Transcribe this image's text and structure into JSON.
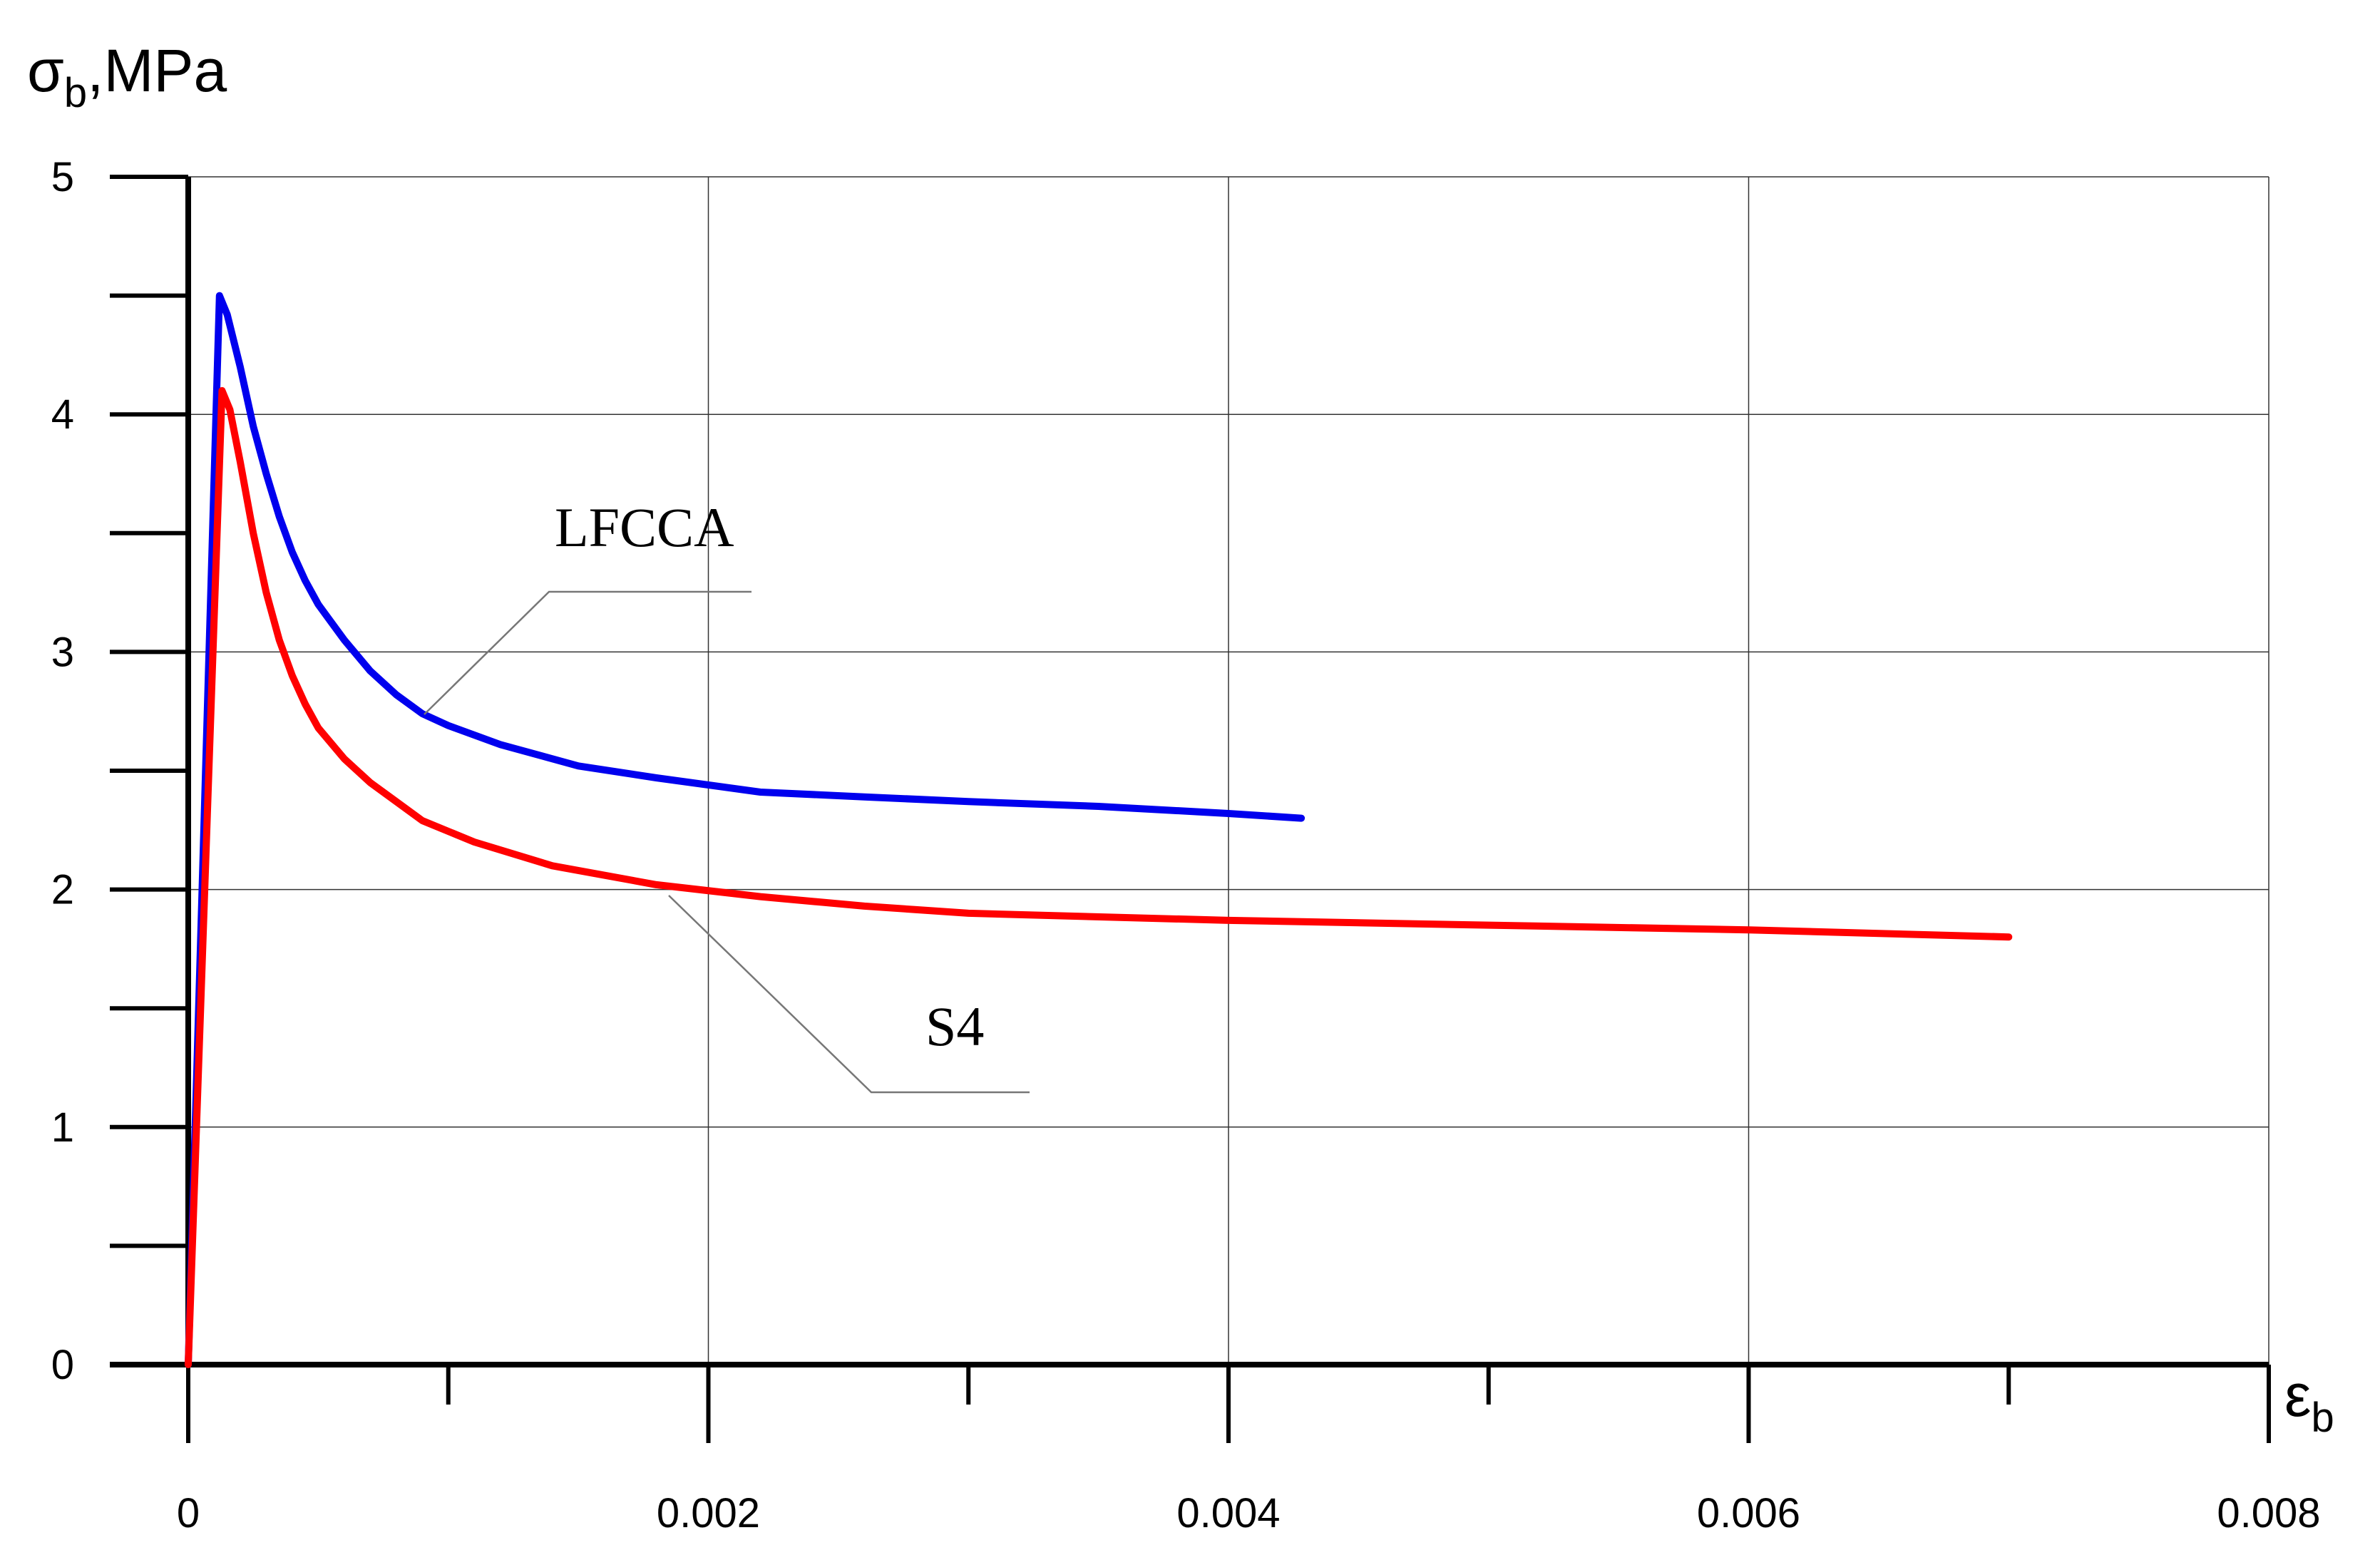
{
  "chart_data": {
    "type": "line",
    "ylabel": {
      "symbol": "σ",
      "subscript": "b",
      "suffix": ",MPa"
    },
    "xlabel": {
      "symbol": "ε",
      "subscript": "b"
    },
    "xlim": [
      0,
      0.008
    ],
    "ylim": [
      0,
      5
    ],
    "x_ticks": [
      "0",
      "0.002",
      "0.004",
      "0.006",
      "0.008"
    ],
    "y_ticks": [
      "0",
      "1",
      "2",
      "3",
      "4",
      "5"
    ],
    "grid": true,
    "series": [
      {
        "name": "LFCCA",
        "color": "#0000ee",
        "points": [
          [
            0,
            0
          ],
          [
            0.00012,
            4.5
          ],
          [
            0.00015,
            4.42
          ],
          [
            0.0002,
            4.2
          ],
          [
            0.00025,
            3.95
          ],
          [
            0.0003,
            3.75
          ],
          [
            0.00035,
            3.57
          ],
          [
            0.0004,
            3.42
          ],
          [
            0.00045,
            3.3
          ],
          [
            0.0005,
            3.2
          ],
          [
            0.0006,
            3.05
          ],
          [
            0.0007,
            2.92
          ],
          [
            0.0008,
            2.82
          ],
          [
            0.0009,
            2.74
          ],
          [
            0.001,
            2.69
          ],
          [
            0.0012,
            2.61
          ],
          [
            0.0015,
            2.52
          ],
          [
            0.0018,
            2.47
          ],
          [
            0.0022,
            2.41
          ],
          [
            0.0026,
            2.39
          ],
          [
            0.003,
            2.37
          ],
          [
            0.0035,
            2.35
          ],
          [
            0.004,
            2.32
          ],
          [
            0.00428,
            2.3
          ]
        ]
      },
      {
        "name": "S4",
        "color": "#ff0000",
        "points": [
          [
            0,
            0
          ],
          [
            0.00013,
            4.1
          ],
          [
            0.00016,
            4.02
          ],
          [
            0.0002,
            3.8
          ],
          [
            0.00025,
            3.5
          ],
          [
            0.0003,
            3.25
          ],
          [
            0.00035,
            3.05
          ],
          [
            0.0004,
            2.9
          ],
          [
            0.00045,
            2.78
          ],
          [
            0.0005,
            2.68
          ],
          [
            0.0006,
            2.55
          ],
          [
            0.0007,
            2.45
          ],
          [
            0.0008,
            2.37
          ],
          [
            0.0009,
            2.29
          ],
          [
            0.0011,
            2.2
          ],
          [
            0.0014,
            2.1
          ],
          [
            0.0018,
            2.02
          ],
          [
            0.0022,
            1.97
          ],
          [
            0.0026,
            1.93
          ],
          [
            0.003,
            1.9
          ],
          [
            0.004,
            1.87
          ],
          [
            0.005,
            1.85
          ],
          [
            0.006,
            1.83
          ],
          [
            0.007,
            1.8
          ]
        ]
      }
    ]
  }
}
